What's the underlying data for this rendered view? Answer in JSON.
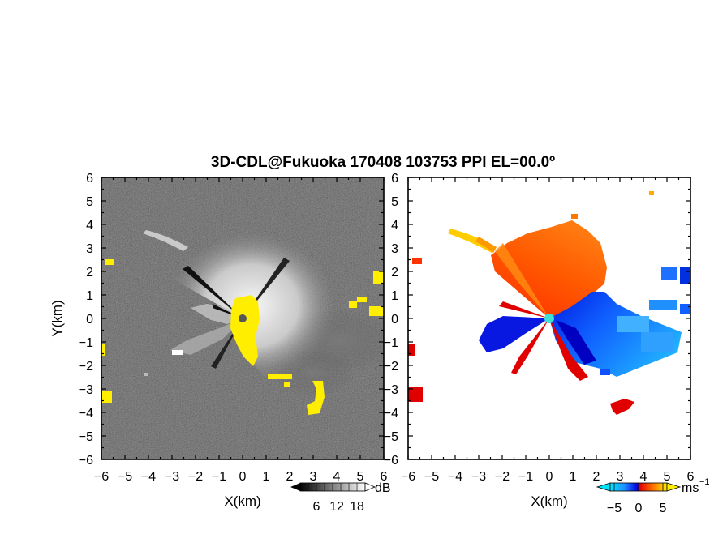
{
  "chart_data": {
    "title": "3D-CDL@Fukuoka 170408 103753 PPI EL=00.0º",
    "panels": [
      {
        "type": "heatmap",
        "quantity": "backscatter intensity",
        "xlabel": "X(km)",
        "ylabel": "Y(km)",
        "xlim": [
          -6,
          6
        ],
        "ylim": [
          -6,
          6
        ],
        "xticks": [
          "−6",
          "−5",
          "−4",
          "−3",
          "−2",
          "−1",
          "0",
          "1",
          "2",
          "3",
          "4",
          "5",
          "6"
        ],
        "yticks": [
          "6",
          "5",
          "4",
          "3",
          "2",
          "1",
          "0",
          "−1",
          "−2",
          "−3",
          "−4",
          "−5",
          "−6"
        ],
        "colorbar": {
          "unit": "dB",
          "ticks": [
            "6",
            "12",
            "18"
          ],
          "tick_values": [
            6,
            12,
            18
          ],
          "range": [
            0,
            24
          ],
          "colormap": "grayscale",
          "extend": "both"
        },
        "highlight_color": "#ffee00",
        "background_color": "#1e1e1e",
        "radar_location": [
          0,
          0
        ]
      },
      {
        "type": "heatmap",
        "quantity": "radial velocity",
        "xlabel": "X(km)",
        "ylabel": "",
        "xlim": [
          -6,
          6
        ],
        "ylim": [
          -6,
          6
        ],
        "xticks": [
          "−6",
          "−5",
          "−4",
          "−3",
          "−2",
          "−1",
          "0",
          "1",
          "2",
          "3",
          "4",
          "5",
          "6"
        ],
        "yticks": [
          "6",
          "5",
          "4",
          "3",
          "2",
          "1",
          "0",
          "−1",
          "−2",
          "−3",
          "−4",
          "−5",
          "−6"
        ],
        "colorbar": {
          "unit": "ms",
          "unit_exponent": "−1",
          "ticks": [
            "−5",
            "0",
            "5"
          ],
          "tick_values": [
            -5,
            0,
            5
          ],
          "range": [
            -7.5,
            7.5
          ],
          "colormap": "cyan-blue-red-orange-yellow",
          "extend": "both"
        },
        "approaching_colors": [
          "#00e5ff",
          "#1e90ff",
          "#0000e0"
        ],
        "receding_colors": [
          "#e00000",
          "#ff5500",
          "#ffaa00",
          "#ffee00"
        ],
        "radar_location": [
          0,
          0
        ],
        "radar_marker_color": "#40e0d0"
      }
    ]
  }
}
